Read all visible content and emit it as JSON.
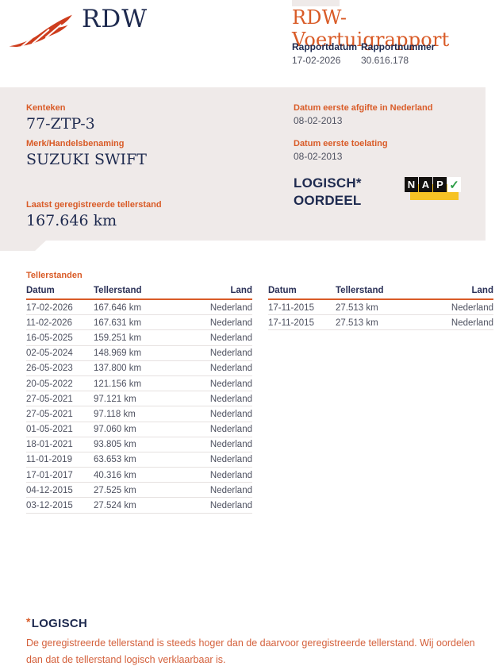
{
  "header": {
    "logo_text": "RDW",
    "title": "RDW-Voertuigrapport",
    "report_date_label": "Rapportdatum",
    "report_date": "17-02-2026",
    "report_number_label": "Rapportnummer",
    "report_number": "30.616.178"
  },
  "summary": {
    "kenteken_label": "Kenteken",
    "kenteken": "77-ZTP-3",
    "merk_label": "Merk/Handelsbenaming",
    "merk": "SUZUKI SWIFT",
    "afgifte_label": "Datum eerste afgifte in Nederland",
    "afgifte": "08-02-2013",
    "toelating_label": "Datum eerste toelating",
    "toelating": "08-02-2013",
    "tellerstand_label": "Laatst geregistreerde tellerstand",
    "tellerstand": "167.646 km",
    "oordeel_line1": "LOGISCH*",
    "oordeel_line2": "OORDEEL",
    "nap": {
      "letters": [
        "N",
        "A",
        "P"
      ],
      "check": "✓"
    }
  },
  "tellerstanden": {
    "section_title": "Tellerstanden",
    "columns": [
      "Datum",
      "Tellerstand",
      "Land"
    ],
    "left_rows": [
      [
        "17-02-2026",
        "167.646 km",
        "Nederland"
      ],
      [
        "11-02-2026",
        "167.631 km",
        "Nederland"
      ],
      [
        "16-05-2025",
        "159.251 km",
        "Nederland"
      ],
      [
        "02-05-2024",
        "148.969 km",
        "Nederland"
      ],
      [
        "26-05-2023",
        "137.800 km",
        "Nederland"
      ],
      [
        "20-05-2022",
        "121.156 km",
        "Nederland"
      ],
      [
        "27-05-2021",
        "97.121 km",
        "Nederland"
      ],
      [
        "27-05-2021",
        "97.118 km",
        "Nederland"
      ],
      [
        "01-05-2021",
        "97.060 km",
        "Nederland"
      ],
      [
        "18-01-2021",
        "93.805 km",
        "Nederland"
      ],
      [
        "11-01-2019",
        "63.653 km",
        "Nederland"
      ],
      [
        "17-01-2017",
        "40.316 km",
        "Nederland"
      ],
      [
        "04-12-2015",
        "27.525 km",
        "Nederland"
      ],
      [
        "03-12-2015",
        "27.524 km",
        "Nederland"
      ]
    ],
    "right_rows": [
      [
        "17-11-2015",
        "27.513 km",
        "Nederland"
      ],
      [
        "17-11-2015",
        "27.513 km",
        "Nederland"
      ]
    ]
  },
  "footnote": {
    "asterisk": "*",
    "title": "LOGISCH",
    "text": "De geregistreerde tellerstand is steeds hoger dan de daarvoor geregistreerde tellerstand. Wij oordelen dan dat de tellerstand logisch verklaarbaar is."
  },
  "colors": {
    "accent_orange": "#d95b27",
    "logo_red": "#ce3d1d",
    "navy": "#1e2a4f",
    "header_navy": "#2a3057",
    "body_text": "#4e5160",
    "panel_grey": "#efeae9",
    "separator": "#e6e1e0",
    "nap_yellow": "#f6c325",
    "nap_green": "#2d9e47",
    "footnote_orange": "#d4603b"
  }
}
